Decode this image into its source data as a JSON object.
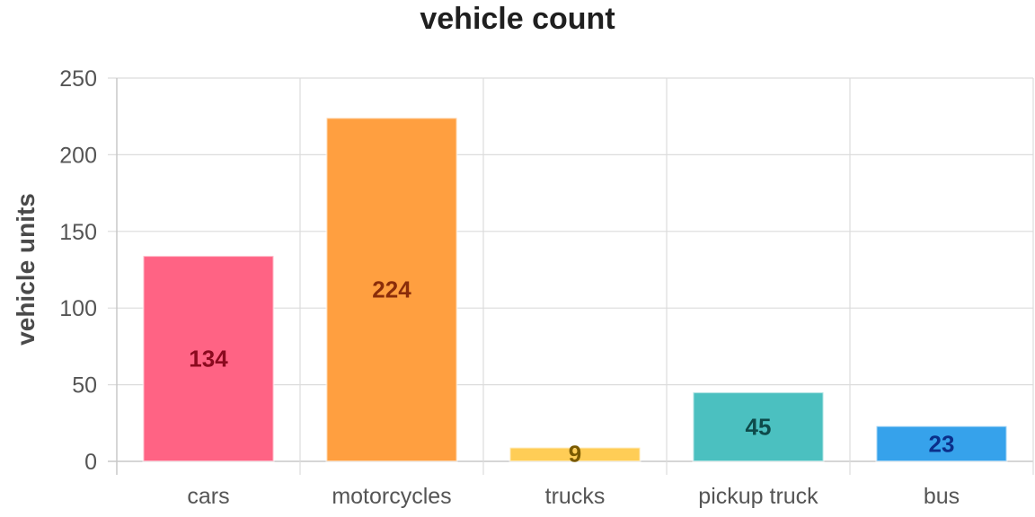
{
  "chart_data": {
    "type": "bar",
    "title": "vehicle count",
    "xlabel": "",
    "ylabel": "vehicle units",
    "categories": [
      "cars",
      "motorcycles",
      "trucks",
      "pickup truck",
      "bus"
    ],
    "values": [
      134,
      224,
      9,
      45,
      23
    ],
    "ylim": [
      0,
      250
    ],
    "yticks": [
      0,
      50,
      100,
      150,
      200,
      250
    ],
    "grid": true,
    "legend": "none",
    "bar_colors": [
      "#ff6384",
      "#ff9f40",
      "#ffcd56",
      "#4bc0c0",
      "#36a2eb"
    ],
    "label_colors": [
      "#8b0a1f",
      "#8a2d0a",
      "#7a5a00",
      "#0e4a4a",
      "#0b2f8a"
    ]
  }
}
